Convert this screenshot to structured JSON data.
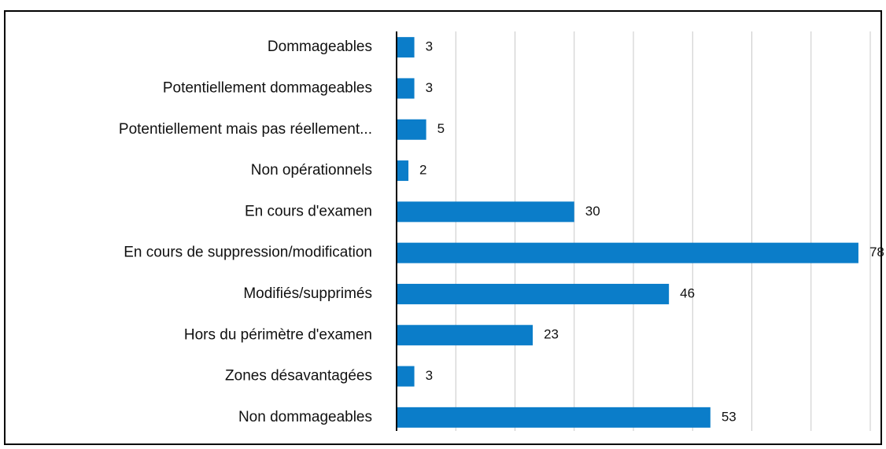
{
  "chart_data": {
    "type": "bar",
    "orientation": "horizontal",
    "categories": [
      "Dommageables",
      "Potentiellement dommageables",
      "Potentiellement mais pas réellement...",
      "Non opérationnels",
      "En cours d'examen",
      "En cours de suppression/modification",
      "Modifiés/supprimés",
      "Hors du périmètre d'examen",
      "Zones désavantagées",
      "Non dommageables"
    ],
    "values": [
      3,
      3,
      5,
      2,
      30,
      78,
      46,
      23,
      3,
      53
    ],
    "color": "#0b7dc9",
    "xlim": [
      0,
      80
    ],
    "xticks": [
      0,
      10,
      20,
      30,
      40,
      50,
      60,
      70,
      80
    ],
    "grid": true
  }
}
